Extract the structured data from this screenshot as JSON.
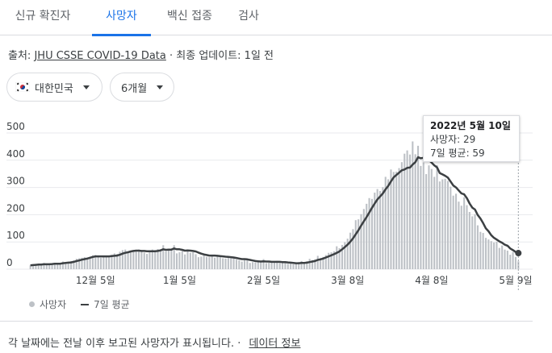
{
  "tabs": [
    {
      "label": "신규 확진자",
      "active": false
    },
    {
      "label": "사망자",
      "active": true
    },
    {
      "label": "백신 접종",
      "active": false
    },
    {
      "label": "검사",
      "active": false
    }
  ],
  "source": {
    "prefix": "출처:",
    "link": "JHU CSSE COVID-19 Data",
    "suffix": "· 최종 업데이트: 1일 전"
  },
  "filters": {
    "country": "대한민국",
    "period": "6개월"
  },
  "tooltip": {
    "date": "2022년 5월 10일",
    "deaths": "사망자: 29",
    "avg": "7일 평균: 59"
  },
  "legend": {
    "bars": "사망자",
    "line": "7일 평균"
  },
  "footer": {
    "note": "각 날짜에는 전날 이후 보고된 사망자가 표시됩니다.",
    "sep": "·",
    "link": "데이터 정보"
  },
  "colors": {
    "bar": "#bdc1c6",
    "line": "#3c4043",
    "accent": "#1a73e8",
    "grid": "#e8eaed"
  },
  "chart_data": {
    "type": "bar",
    "y_ticks": [
      0,
      100,
      200,
      300,
      400,
      500
    ],
    "ylim": [
      0,
      500
    ],
    "x_tick_labels": [
      "12월 5일",
      "1월 5일",
      "2월 5일",
      "3월 8일",
      "4월 8일",
      "5월 9일"
    ],
    "x_tick_index": [
      24,
      55,
      86,
      117,
      148,
      179
    ],
    "highlight_index": 180,
    "series": [
      {
        "name": "사망자",
        "type": "bar",
        "values": [
          14,
          13,
          17,
          19,
          18,
          23,
          17,
          16,
          18,
          23,
          21,
          20,
          28,
          26,
          27,
          30,
          32,
          38,
          40,
          42,
          44,
          43,
          46,
          51,
          52,
          48,
          42,
          47,
          49,
          44,
          53,
          58,
          56,
          64,
          70,
          72,
          64,
          65,
          70,
          68,
          72,
          65,
          61,
          56,
          64,
          72,
          70,
          74,
          73,
          88,
          66,
          75,
          73,
          88,
          58,
          62,
          66,
          54,
          69,
          60,
          62,
          55,
          44,
          46,
          51,
          45,
          44,
          49,
          42,
          46,
          50,
          40,
          39,
          41,
          40,
          44,
          35,
          33,
          28,
          34,
          35,
          23,
          26,
          25,
          28,
          31,
          37,
          22,
          24,
          25,
          27,
          31,
          23,
          25,
          24,
          20,
          21,
          18,
          20,
          26,
          30,
          24,
          29,
          38,
          33,
          36,
          49,
          41,
          45,
          52,
          60,
          62,
          66,
          84,
          77,
          89,
          99,
          112,
          134,
          147,
          180,
          183,
          202,
          221,
          240,
          261,
          258,
          281,
          294,
          287,
          301,
          339,
          330,
          366,
          357,
          358,
          371,
          393,
          424,
          436,
          421,
          469,
          422,
          453,
          379,
          392,
          349,
          381,
          368,
          339,
          382,
          322,
          330,
          332,
          324,
          303,
          270,
          277,
          248,
          233,
          264,
          235,
          210,
          194,
          202,
          161,
          137,
          133,
          115,
          109,
          103,
          98,
          101,
          78,
          87,
          72,
          68,
          53,
          63,
          45,
          29
        ]
      },
      {
        "name": "7일 평균",
        "type": "line",
        "values": [
          14,
          15,
          16,
          17,
          17,
          18,
          18,
          18,
          19,
          20,
          20,
          20,
          22,
          23,
          24,
          25,
          27,
          30,
          32,
          35,
          37,
          39,
          42,
          45,
          47,
          47,
          47,
          47,
          47,
          47,
          48,
          49,
          50,
          53,
          57,
          60,
          62,
          65,
          67,
          68,
          68,
          67,
          67,
          66,
          66,
          66,
          66,
          67,
          69,
          73,
          71,
          72,
          72,
          76,
          73,
          73,
          71,
          68,
          69,
          68,
          67,
          65,
          61,
          57,
          54,
          52,
          50,
          50,
          50,
          49,
          48,
          47,
          46,
          45,
          44,
          43,
          41,
          39,
          37,
          37,
          36,
          34,
          32,
          30,
          29,
          28,
          29,
          28,
          28,
          27,
          27,
          27,
          27,
          26,
          26,
          25,
          24,
          23,
          22,
          22,
          23,
          23,
          24,
          26,
          28,
          30,
          34,
          36,
          39,
          43,
          47,
          51,
          55,
          60,
          65,
          73,
          81,
          90,
          101,
          113,
          128,
          143,
          160,
          176,
          191,
          208,
          225,
          241,
          256,
          267,
          278,
          293,
          306,
          322,
          337,
          346,
          354,
          363,
          366,
          372,
          373,
          384,
          393,
          411,
          407,
          409,
          406,
          401,
          391,
          381,
          374,
          353,
          348,
          343,
          336,
          322,
          307,
          300,
          289,
          278,
          275,
          261,
          241,
          226,
          219,
          199,
          186,
          169,
          150,
          139,
          125,
          115,
          109,
          102,
          97,
          90,
          86,
          76,
          70,
          63,
          59
        ]
      }
    ]
  }
}
